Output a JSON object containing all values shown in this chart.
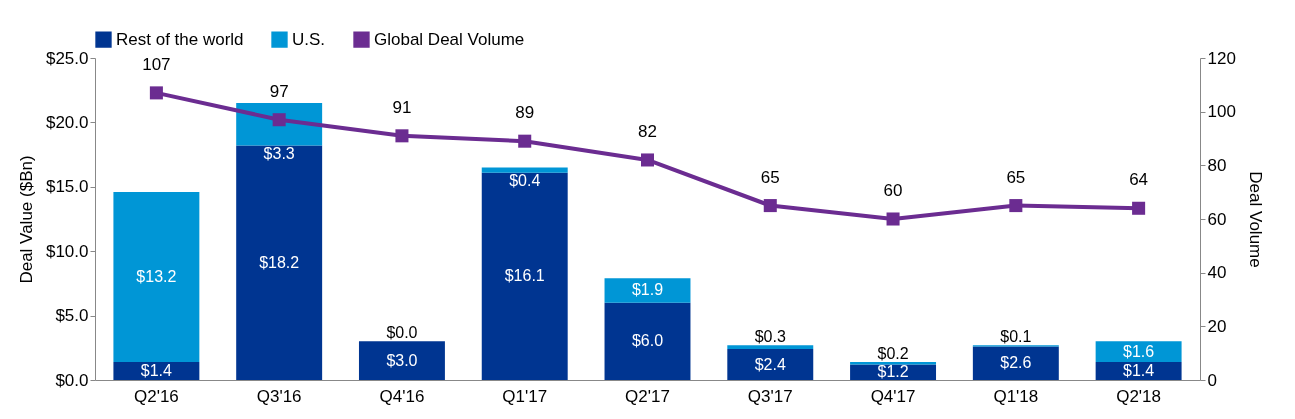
{
  "chart_data": {
    "type": "bar",
    "stacked": true,
    "ylabel": "Deal Value ($Bn)",
    "y2label": "Deal Volume",
    "categories": [
      "Q2'16",
      "Q3'16",
      "Q4'16",
      "Q1'17",
      "Q2'17",
      "Q3'17",
      "Q4'17",
      "Q1'18",
      "Q2'18"
    ],
    "series": [
      {
        "name": "Rest of the world",
        "color": "#003591",
        "values": [
          1.4,
          18.2,
          3.0,
          16.1,
          6.0,
          2.4,
          1.2,
          2.6,
          1.4
        ],
        "value_labels": [
          "$1.4",
          "$18.2",
          "$3.0",
          "$16.1",
          "$6.0",
          "$2.4",
          "$1.2",
          "$2.6",
          "$1.4"
        ]
      },
      {
        "name": "U.S.",
        "color": "#0096d6",
        "values": [
          13.2,
          3.3,
          0.0,
          0.4,
          1.9,
          0.3,
          0.2,
          0.1,
          1.6
        ],
        "value_labels": [
          "$13.2",
          "$3.3",
          "$0.0",
          "$0.4",
          "$1.9",
          "$0.3",
          "$0.2",
          "$0.1",
          "$1.6"
        ]
      },
      {
        "name": "Global Deal Volume",
        "type": "line",
        "axis": "y2",
        "color": "#6b2c91",
        "marker": "square",
        "values": [
          107,
          97,
          91,
          89,
          82,
          65,
          60,
          65,
          64
        ],
        "value_labels": [
          "107",
          "97",
          "91",
          "89",
          "82",
          "65",
          "60",
          "65",
          "64"
        ]
      }
    ],
    "ylim": [
      0,
      25
    ],
    "yticks": [
      {
        "value": 0,
        "label": "$0.0"
      },
      {
        "value": 5,
        "label": "$5.0"
      },
      {
        "value": 10,
        "label": "$10.0"
      },
      {
        "value": 15,
        "label": "$15.0"
      },
      {
        "value": 20,
        "label": "$20.0"
      },
      {
        "value": 25,
        "label": "$25.0"
      }
    ],
    "y2lim": [
      0,
      120
    ],
    "y2ticks": [
      0,
      20,
      40,
      60,
      80,
      100,
      120
    ],
    "legend": "top",
    "grid": false
  }
}
